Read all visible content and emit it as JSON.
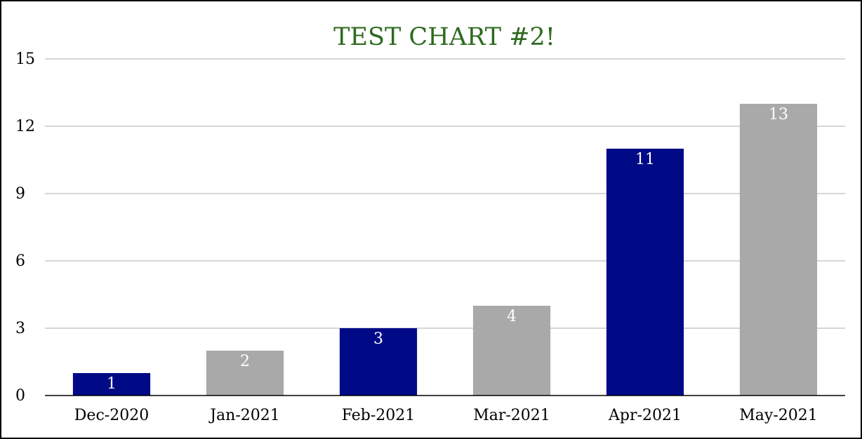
{
  "chart_data": {
    "type": "bar",
    "title": "TEST CHART #2!",
    "categories": [
      "Dec-2020",
      "Jan-2021",
      "Feb-2021",
      "Mar-2021",
      "Apr-2021",
      "May-2021"
    ],
    "values": [
      1,
      2,
      3,
      4,
      11,
      13
    ],
    "data_labels": [
      "1",
      "2",
      "3",
      "4",
      "11",
      "13"
    ],
    "bar_colors": [
      "#000a87",
      "#a9a9a9",
      "#000a87",
      "#a9a9a9",
      "#000a87",
      "#a9a9a9"
    ],
    "title_color": "#2d6a1f",
    "ylim": [
      0,
      15
    ],
    "yticks": [
      0,
      3,
      6,
      9,
      12,
      15
    ],
    "xlabel": "",
    "ylabel": "",
    "grid": true,
    "legend": "none"
  }
}
